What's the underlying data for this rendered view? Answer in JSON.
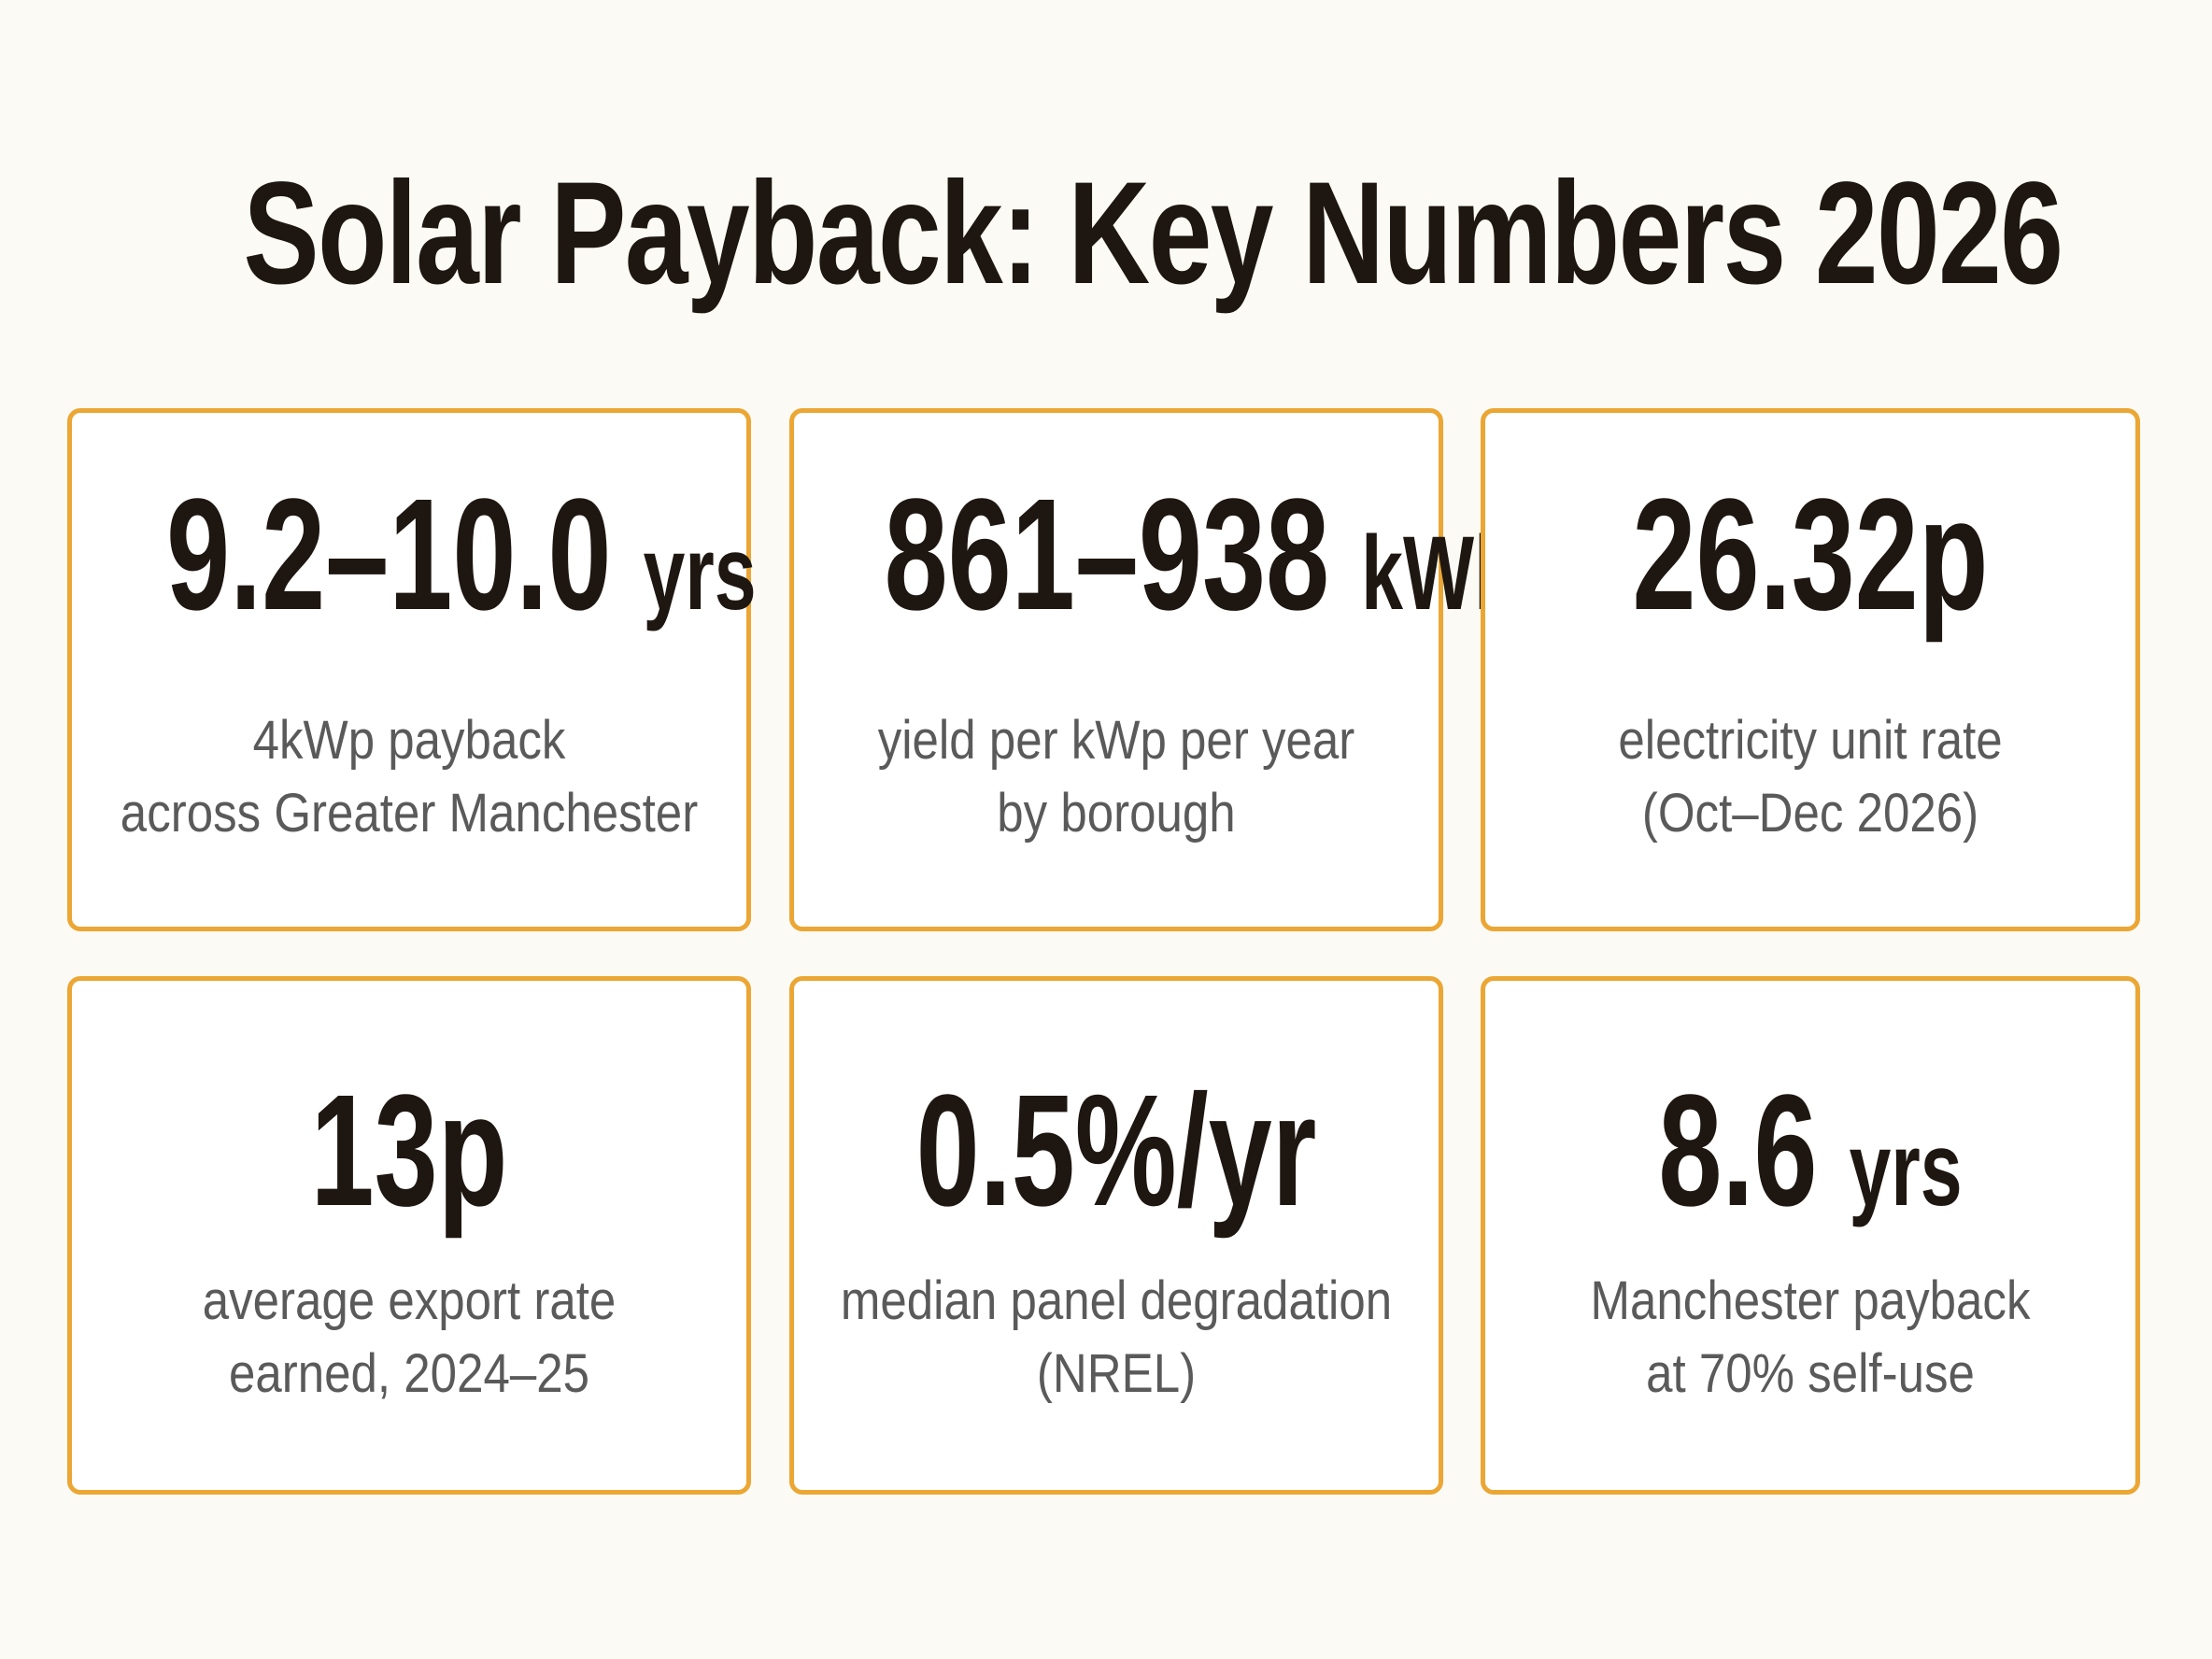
{
  "title": "Solar Payback: Key Numbers 2026",
  "cards": [
    {
      "value": "9.2–10.0",
      "unit": "yrs",
      "line1": "4kWp payback",
      "line2": "across Greater Manchester"
    },
    {
      "value": "861–938",
      "unit": "kWh",
      "line1": "yield per kWp per year",
      "line2": "by borough"
    },
    {
      "value": "26.32p",
      "unit": "",
      "line1": "electricity unit rate",
      "line2": "(Oct–Dec 2026)"
    },
    {
      "value": "13p",
      "unit": "",
      "line1": "average export rate",
      "line2": "earned, 2024–25"
    },
    {
      "value": "0.5%/yr",
      "unit": "",
      "line1": "median panel degradation",
      "line2": "(NREL)"
    },
    {
      "value": "8.6",
      "unit": "yrs",
      "line1": "Manchester payback",
      "line2": "at 70% self-use"
    }
  ],
  "colors": {
    "background": "#fcfaf4",
    "card_border": "#eba634",
    "headline_text": "#1e1610",
    "description_text": "#5a5a5a"
  }
}
